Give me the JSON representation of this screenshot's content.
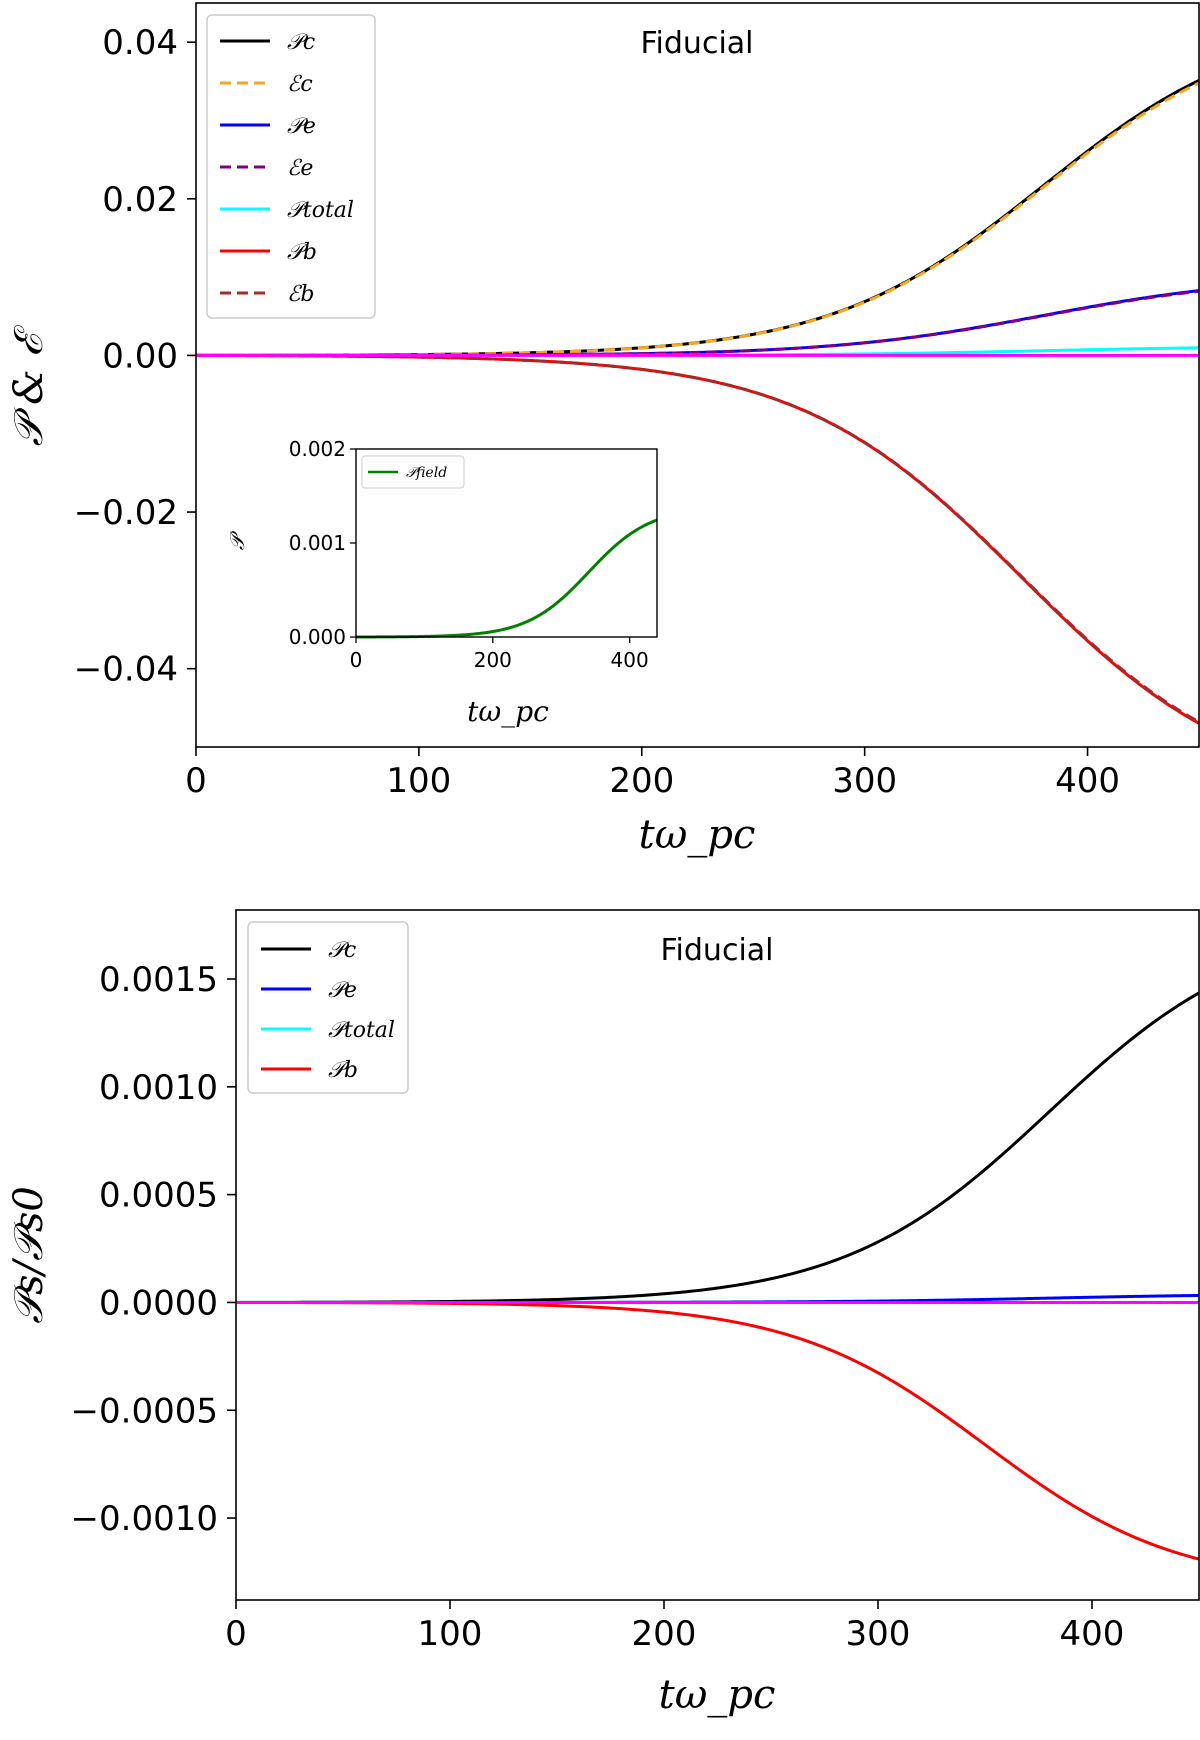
{
  "chart_data": [
    {
      "type": "line",
      "annotation": "Fiducial",
      "xlabel": "tω_pc",
      "ylabel": "𝒫 & ℰ",
      "xlim": [
        0,
        450
      ],
      "ylim": [
        -0.05,
        0.045
      ],
      "xticks": [
        0,
        100,
        200,
        300,
        400
      ],
      "yticks": [
        0.04,
        0.02,
        0.0,
        -0.02,
        -0.04
      ],
      "xtick_labels": [
        "0",
        "100",
        "200",
        "300",
        "400"
      ],
      "ytick_labels": [
        "0.04",
        "0.02",
        "0.00",
        "−0.02",
        "−0.04"
      ],
      "legend_position": "upper-left",
      "series": [
        {
          "name": "𝒫c",
          "color": "#000000",
          "dash": "solid",
          "amplitude": 0.0433,
          "center": 380,
          "width": 48,
          "x": [
            0,
            100,
            200,
            250,
            300,
            350,
            400,
            450
          ],
          "values": [
            0.0,
            0.0003,
            0.0015,
            0.0045,
            0.0105,
            0.0205,
            0.0335,
            0.0428
          ]
        },
        {
          "name": "ℰc",
          "color": "#f5a623",
          "dash": "dashed",
          "amplitude": 0.0429,
          "center": 380,
          "width": 48,
          "x": [
            0,
            100,
            200,
            250,
            300,
            350,
            400,
            450
          ],
          "values": [
            0.0,
            0.0003,
            0.0015,
            0.0045,
            0.0104,
            0.0203,
            0.0332,
            0.0424
          ]
        },
        {
          "name": "𝒫e",
          "color": "#0000ff",
          "dash": "solid",
          "amplitude": 0.0102,
          "center": 380,
          "width": 48,
          "x": [
            0,
            100,
            200,
            250,
            300,
            350,
            400,
            450
          ],
          "values": [
            0.0,
            0.0,
            0.0004,
            0.001,
            0.0024,
            0.0048,
            0.0079,
            0.01
          ]
        },
        {
          "name": "ℰe",
          "color": "#800080",
          "dash": "dashed",
          "amplitude": 0.0101,
          "center": 380,
          "width": 48,
          "x": [
            0,
            100,
            200,
            250,
            300,
            350,
            400,
            450
          ],
          "values": [
            0.0,
            0.0,
            0.0004,
            0.001,
            0.0024,
            0.0047,
            0.0078,
            0.0099
          ]
        },
        {
          "name": "𝒫total",
          "color": "#00ffff",
          "dash": "solid",
          "amplitude": 0.0012,
          "center": 380,
          "width": 48,
          "x": [
            0,
            100,
            200,
            300,
            400,
            450
          ],
          "values": [
            0.0,
            0.0,
            0.0,
            0.0002,
            0.0006,
            0.0008
          ]
        },
        {
          "name": "𝒫b",
          "color": "#ff0000",
          "dash": "solid",
          "amplitude": -0.0565,
          "center": 370,
          "width": 50,
          "x": [
            0,
            100,
            200,
            250,
            300,
            350,
            400,
            435
          ],
          "values": [
            0.0,
            -0.0004,
            -0.0025,
            -0.0065,
            -0.0145,
            -0.0265,
            -0.0415,
            -0.05
          ]
        },
        {
          "name": "ℰb",
          "color": "#a52a2a",
          "dash": "dashed",
          "amplitude": -0.0563,
          "center": 370,
          "width": 50,
          "x": [
            0,
            100,
            200,
            250,
            300,
            350,
            400,
            435
          ],
          "values": [
            0.0,
            -0.0004,
            -0.0025,
            -0.0065,
            -0.0145,
            -0.0264,
            -0.0413,
            -0.0498
          ]
        },
        {
          "color": "#ff00ff",
          "dash": "solid",
          "amplitude": 0.0,
          "center": 380,
          "width": 48,
          "x": [
            0,
            450
          ],
          "values": [
            0.0,
            0.0
          ]
        }
      ],
      "inset": {
        "type": "line",
        "xlabel": "tω_pc",
        "ylabel": "𝒫",
        "xlim": [
          0,
          440
        ],
        "ylim": [
          0,
          0.002
        ],
        "xticks": [
          0,
          200,
          400
        ],
        "yticks": [
          0.002,
          0.001,
          0.0
        ],
        "xtick_labels": [
          "0",
          "200",
          "400"
        ],
        "ytick_labels": [
          "0.002",
          "0.001",
          "0.000"
        ],
        "series": [
          {
            "name": "𝒫field",
            "color": "#008000",
            "amplitude": 0.00138,
            "center": 340,
            "width": 45,
            "x": [
              0,
              100,
              200,
              300,
              350,
              400,
              440
            ],
            "values": [
              0.0,
              0.0,
              0.0001,
              0.0005,
              0.00085,
              0.0011,
              0.00128
            ]
          }
        ]
      }
    },
    {
      "type": "line",
      "annotation": "Fiducial",
      "xlabel": "tω_pc",
      "ylabel": "𝒫s/𝒫s0",
      "xlim": [
        0,
        450
      ],
      "ylim": [
        -0.00138,
        0.00182
      ],
      "xticks": [
        0,
        100,
        200,
        300,
        400
      ],
      "yticks": [
        0.0015,
        0.001,
        0.0005,
        0.0,
        -0.0005,
        -0.001
      ],
      "xtick_labels": [
        "0",
        "100",
        "200",
        "300",
        "400"
      ],
      "ytick_labels": [
        "0.0015",
        "0.0010",
        "0.0005",
        "0.0000",
        "−0.0005",
        "−0.0010"
      ],
      "legend_position": "upper-left",
      "series": [
        {
          "name": "𝒫c",
          "color": "#000000",
          "dash": "solid",
          "amplitude": 0.00177,
          "center": 380,
          "width": 48,
          "x": [
            0,
            100,
            200,
            250,
            300,
            350,
            400,
            450
          ],
          "values": [
            0.0,
            1e-05,
            6e-05,
            0.00018,
            0.00042,
            0.00085,
            0.0014,
            0.00172
          ]
        },
        {
          "name": "𝒫e",
          "color": "#0000ff",
          "dash": "solid",
          "amplitude": 4e-05,
          "center": 380,
          "width": 48,
          "x": [
            0,
            200,
            300,
            400,
            450
          ],
          "values": [
            0.0,
            3e-06,
            1e-05,
            3e-05,
            4e-05
          ]
        },
        {
          "name": "𝒫total",
          "color": "#00ffff",
          "dash": "solid",
          "amplitude": 0.0,
          "center": 380,
          "width": 48,
          "x": [
            0,
            450
          ],
          "values": [
            0.0,
            0.0
          ]
        },
        {
          "name": "𝒫b",
          "color": "#ff0000",
          "dash": "solid",
          "amplitude": -0.00132,
          "center": 350,
          "width": 45,
          "x": [
            0,
            100,
            200,
            250,
            300,
            350,
            400,
            450
          ],
          "values": [
            0.0,
            -1e-05,
            -9e-05,
            -0.00018,
            -0.0004,
            -0.00072,
            -0.00105,
            -0.00127
          ]
        },
        {
          "color": "#ff00ff",
          "dash": "solid",
          "amplitude": 0.0,
          "center": 380,
          "width": 48,
          "x": [
            0,
            450
          ],
          "values": [
            0.0,
            0.0
          ]
        }
      ]
    }
  ]
}
